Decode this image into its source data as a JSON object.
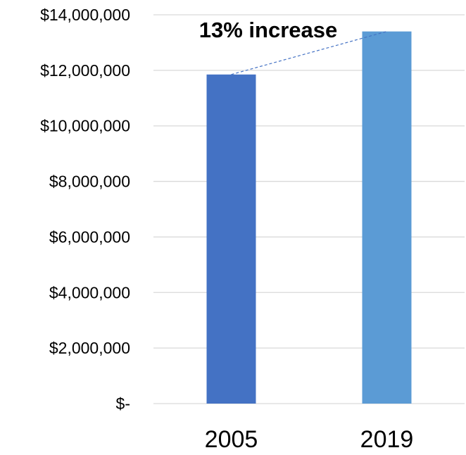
{
  "chart_data": {
    "type": "bar",
    "categories": [
      "2005",
      "2019"
    ],
    "series": [
      {
        "values": [
          11850000,
          13400000
        ],
        "colors": [
          "#4472c4",
          "#5b9bd5"
        ]
      }
    ],
    "ylim": [
      0,
      14000000
    ],
    "yticks": [
      0,
      2000000,
      4000000,
      6000000,
      8000000,
      10000000,
      12000000,
      14000000
    ],
    "ytick_labels": [
      "$-",
      "$2,000,000",
      "$4,000,000",
      "$6,000,000",
      "$8,000,000",
      "$10,000,000",
      "$12,000,000",
      "$14,000,000"
    ],
    "grid": true,
    "legend": "none",
    "annotation": {
      "text": "13% increase",
      "from_category": "2005",
      "to_category": "2019",
      "line_color": "#4472c4",
      "line_style": "dashed"
    },
    "colors": {
      "gridline": "#d9d9d9",
      "text": "#000000"
    }
  }
}
